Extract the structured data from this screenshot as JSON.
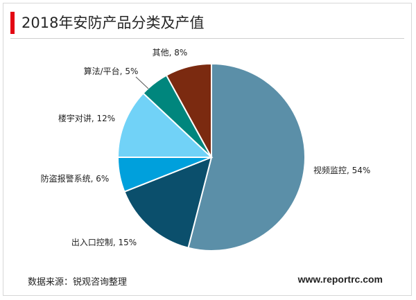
{
  "header": {
    "title": "2018年安防产品分类及产值"
  },
  "footer": {
    "source": "数据来源：锐观咨询整理",
    "website": "www.reportrc.com"
  },
  "colors": {
    "accent": "#e30613"
  },
  "chart_data": {
    "type": "pie",
    "title": "2018年安防产品分类及产值",
    "unit": "%",
    "slices": [
      {
        "label": "视频监控",
        "value": 54,
        "display": "视频监控, 54%",
        "color": "#5b8fa8"
      },
      {
        "label": "出入口控制",
        "value": 15,
        "display": "出入口控制, 15%",
        "color": "#0b4f6c"
      },
      {
        "label": "防盗报警系统",
        "value": 6,
        "display": "防盗报警系统, 6%",
        "color": "#00a0dc"
      },
      {
        "label": "楼宇对讲",
        "value": 12,
        "display": "楼宇对讲, 12%",
        "color": "#71d2f7"
      },
      {
        "label": "算法/平台",
        "value": 5,
        "display": "算法/平台, 5%",
        "color": "#00867d"
      },
      {
        "label": "其他",
        "value": 8,
        "display": "其他, 8%",
        "color": "#7b2a10"
      }
    ],
    "start": "12 o'clock",
    "direction": "clockwise"
  }
}
